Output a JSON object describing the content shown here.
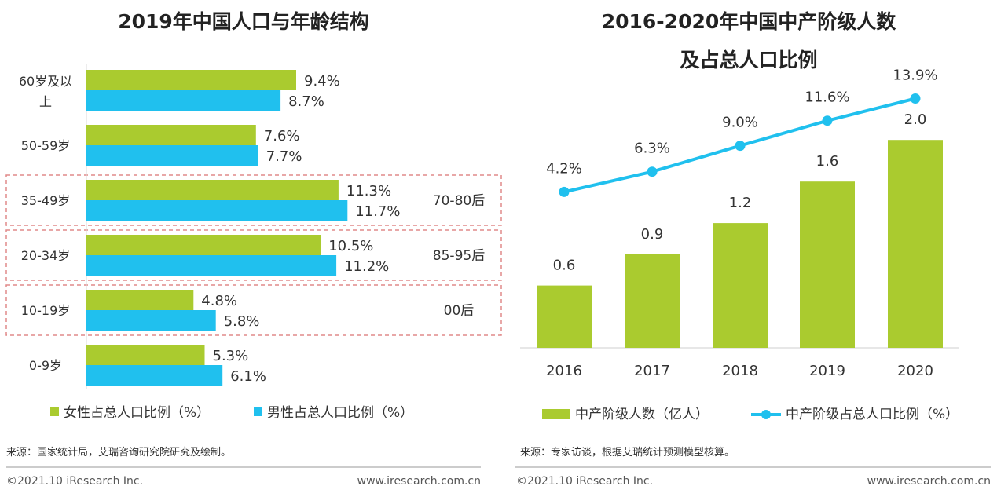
{
  "chart_data": [
    {
      "type": "bar",
      "orientation": "horizontal",
      "title": "2019年中国人口与年龄结构",
      "categories": [
        "60岁及以上",
        "50-59岁",
        "35-49岁",
        "20-34岁",
        "10-19岁",
        "0-9岁"
      ],
      "category_lines": [
        [
          "60岁及以",
          "上"
        ],
        [
          "50-59岁"
        ],
        [
          "35-49岁"
        ],
        [
          "20-34岁"
        ],
        [
          "10-19岁"
        ],
        [
          "0-9岁"
        ]
      ],
      "series": [
        {
          "name": "女性占总人口比例（%）",
          "values": [
            9.4,
            7.6,
            11.3,
            10.5,
            4.8,
            5.3
          ],
          "labels": [
            "9.4%",
            "7.6%",
            "11.3%",
            "10.5%",
            "4.8%",
            "5.3%"
          ],
          "color": "#aacb2f"
        },
        {
          "name": "男性占总人口比例（%）",
          "values": [
            8.7,
            7.7,
            11.7,
            11.2,
            5.8,
            6.1
          ],
          "labels": [
            "8.7%",
            "7.7%",
            "11.7%",
            "11.2%",
            "5.8%",
            "6.1%"
          ],
          "color": "#20c0ee"
        }
      ],
      "annotations": [
        {
          "category": "35-49岁",
          "text": "70-80后"
        },
        {
          "category": "20-34岁",
          "text": "85-95后"
        },
        {
          "category": "10-19岁",
          "text": "00后"
        }
      ],
      "highlight_color": "#e08a8a",
      "xlim": [
        0,
        13
      ],
      "legend": "bottom"
    },
    {
      "type": "bar+line",
      "title": "2016-2020年中国中产阶级人数",
      "subtitle": "及占总人口比例",
      "categories": [
        "2016",
        "2017",
        "2018",
        "2019",
        "2020"
      ],
      "series": [
        {
          "name": "中产阶级人数（亿人）",
          "type": "bar",
          "values": [
            0.6,
            0.9,
            1.2,
            1.6,
            2.0
          ],
          "labels": [
            "0.6",
            "0.9",
            "1.2",
            "1.6",
            "2.0"
          ],
          "color": "#aacb2f"
        },
        {
          "name": "中产阶级占总人口比例（%）",
          "type": "line",
          "values": [
            4.2,
            6.3,
            9.0,
            11.6,
            13.9
          ],
          "labels": [
            "4.2%",
            "6.3%",
            "9.0%",
            "11.6%",
            "13.9%"
          ],
          "color": "#20c0ee"
        }
      ],
      "ylim_bar": [
        0,
        2.5
      ],
      "ylim_line": [
        -12,
        15
      ],
      "legend": "bottom"
    }
  ],
  "footer": {
    "left_source": "来源：国家统计局，艾瑞咨询研究院研究及绘制。",
    "right_source": "来源：专家访谈，根据艾瑞统计预测模型核算。",
    "copyright": "©2021.10 iResearch Inc.",
    "website": "www.iresearch.com.cn"
  }
}
